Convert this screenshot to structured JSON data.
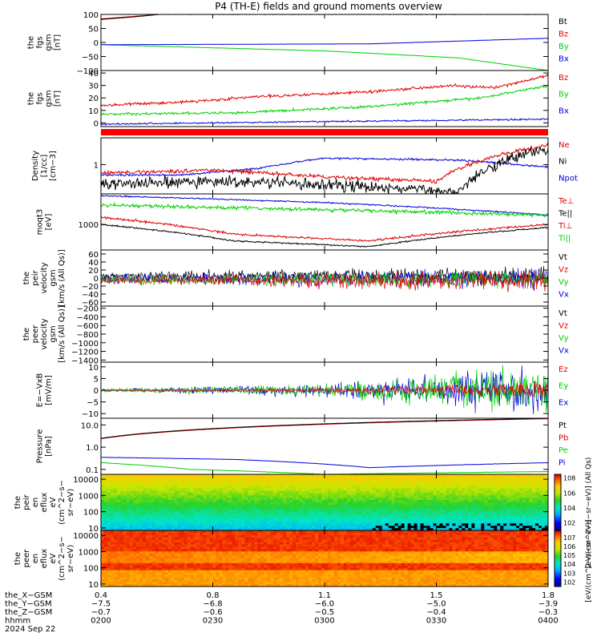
{
  "title": "P4 (TH-E) fields and ground moments overview",
  "colors": {
    "black": "#000000",
    "red": "#e00000",
    "green": "#00d000",
    "blue": "#0000e0",
    "thick_bar": "#ff0000"
  },
  "panels": [
    {
      "key": "p1",
      "ylabel": [
        "the",
        "fgs",
        "gsm",
        "[nT]"
      ],
      "ylim": [
        -100,
        100
      ],
      "yticks": [
        "100",
        "50",
        "0",
        "−50",
        "−100"
      ],
      "ytick_values": [
        100,
        50,
        0,
        -50,
        -100
      ],
      "legend": [
        {
          "text": "Bt",
          "color": "#000000"
        },
        {
          "text": "Bz",
          "color": "#e00000"
        },
        {
          "text": "By",
          "color": "#00d000"
        },
        {
          "text": "Bx",
          "color": "#0000e0"
        }
      ]
    },
    {
      "key": "p2",
      "ylabel": [
        "the",
        "fgs",
        "gsm",
        "[nT]"
      ],
      "ylim": [
        -3,
        42
      ],
      "yticks": [
        "40",
        "30",
        "20",
        "10",
        "0"
      ],
      "ytick_values": [
        40,
        30,
        20,
        10,
        0
      ],
      "legend": [
        {
          "text": "Bz",
          "color": "#e00000"
        },
        {
          "text": "By",
          "color": "#00d000"
        },
        {
          "text": "Bx",
          "color": "#0000e0"
        }
      ]
    },
    {
      "key": "p3",
      "ylabel": [
        "Density",
        "[1/cc]",
        "[cm−3]"
      ],
      "log": true,
      "ylim": [
        0.3,
        3
      ],
      "yticks": [
        "1"
      ],
      "ytick_values": [
        1
      ],
      "legend": [
        {
          "text": "Ne",
          "color": "#e00000"
        },
        {
          "text": "Ni",
          "color": "#000000"
        },
        {
          "text": "Npot",
          "color": "#0000e0"
        }
      ]
    },
    {
      "key": "p4",
      "ylabel": [
        "moqt3",
        "[eV]"
      ],
      "log": true,
      "ylim": [
        400,
        3000
      ],
      "yticks": [
        "1000"
      ],
      "ytick_values": [
        1000
      ],
      "legend": [
        {
          "text": "Te⊥",
          "color": "#e00000"
        },
        {
          "text": "Te||",
          "color": "#000000"
        },
        {
          "text": "Ti⊥",
          "color": "#e00000"
        },
        {
          "text": "Ti||",
          "color": "#00d000"
        }
      ]
    },
    {
      "key": "p5",
      "ylabel": [
        "the",
        "peir",
        "velocity",
        "gsm",
        "[km/s (All Qs)]"
      ],
      "ylim": [
        -70,
        70
      ],
      "yticks": [
        "60",
        "40",
        "20",
        "0",
        "−20",
        "−40",
        "−60"
      ],
      "ytick_values": [
        60,
        40,
        20,
        0,
        -20,
        -40,
        -60
      ],
      "legend": [
        {
          "text": "Vt",
          "color": "#000000"
        },
        {
          "text": "Vz",
          "color": "#e00000"
        },
        {
          "text": "Vy",
          "color": "#00d000"
        },
        {
          "text": "Vx",
          "color": "#0000e0"
        }
      ]
    },
    {
      "key": "p6",
      "ylabel": [
        "the",
        "peer",
        "velocity",
        "gsm",
        "[km/s (All Qs)]"
      ],
      "ylim": [
        -1450,
        -150
      ],
      "yticks": [
        "−200",
        "−400",
        "−600",
        "−800",
        "−1000",
        "−1200",
        "−1400"
      ],
      "ytick_values": [
        -200,
        -400,
        -600,
        -800,
        -1000,
        -1200,
        -1400
      ],
      "legend": [
        {
          "text": "Vt",
          "color": "#000000"
        },
        {
          "text": "Vz",
          "color": "#e00000"
        },
        {
          "text": "Vy",
          "color": "#00d000"
        },
        {
          "text": "Vx",
          "color": "#0000e0"
        }
      ]
    },
    {
      "key": "p7",
      "ylabel": [
        "E=−VxB",
        "[mV/m]"
      ],
      "ylim": [
        -12,
        12
      ],
      "yticks": [
        "10",
        "5",
        "0",
        "−5",
        "−10"
      ],
      "ytick_values": [
        10,
        5,
        0,
        -5,
        -10
      ],
      "legend": [
        {
          "text": "Ez",
          "color": "#e00000"
        },
        {
          "text": "Ey",
          "color": "#00d000"
        },
        {
          "text": "Ex",
          "color": "#0000e0"
        }
      ]
    },
    {
      "key": "p8",
      "ylabel": [
        "Pressure",
        "[nPa]"
      ],
      "log": true,
      "ylim": [
        0.06,
        20
      ],
      "yticks": [
        "10.0",
        "1.0",
        "0.1"
      ],
      "ytick_values": [
        10,
        1,
        0.1
      ],
      "legend": [
        {
          "text": "Pt",
          "color": "#000000"
        },
        {
          "text": "Pb",
          "color": "#e00000"
        },
        {
          "text": "Pe",
          "color": "#00d000"
        },
        {
          "text": "Pi",
          "color": "#0000e0"
        }
      ]
    },
    {
      "key": "p9",
      "ylabel": [
        "the",
        "peir",
        "en",
        "eflux",
        "eV",
        "(cm^2−s−",
        "sr−eV)"
      ],
      "log": true,
      "ylim": [
        7,
        20000
      ],
      "yticks": [
        "10000",
        "1000",
        "100",
        "10"
      ],
      "ytick_values": [
        10000,
        1000,
        100,
        10
      ],
      "cbar": {
        "label": "[eV/(cm^2−s−sr−eV)] (All Qs)",
        "ticks": [
          "10^8",
          "10^6",
          "10^4",
          "10^2"
        ],
        "tick_values": [
          8,
          6,
          4,
          2
        ],
        "range": [
          1,
          8.5
        ]
      }
    },
    {
      "key": "p10",
      "ylabel": [
        "the",
        "peer",
        "en",
        "eflux",
        "eV",
        "(cm^2−s−",
        "sr−eV)"
      ],
      "log": true,
      "ylim": [
        7,
        20000
      ],
      "yticks": [
        "10000",
        "1000",
        "100",
        "10"
      ],
      "ytick_values": [
        10000,
        1000,
        100,
        10
      ],
      "cbar": {
        "label": "[eV/(cm^2−s−sr−eV)]",
        "ticks": [
          "10^7",
          "10^6",
          "10^5",
          "10^4",
          "10^3",
          "10^2"
        ],
        "tick_values": [
          7,
          6,
          5,
          4,
          3,
          2
        ],
        "range": [
          1.5,
          7.8
        ]
      }
    }
  ],
  "xaxis": {
    "rows": [
      {
        "label": "the_X−GSM",
        "values": [
          "0.4",
          "0.8",
          "1.1",
          "1.5",
          "1.8"
        ]
      },
      {
        "label": "the_Y−GSM",
        "values": [
          "−7.5",
          "−6.8",
          "−6.0",
          "−5.0",
          "−3.9"
        ]
      },
      {
        "label": "the_Z−GSM",
        "values": [
          "−0.7",
          "−0.6",
          "−0.5",
          "−0.4",
          "−0.3"
        ]
      },
      {
        "label": "hhmm",
        "values": [
          "0200",
          "0230",
          "0300",
          "0330",
          "0400"
        ]
      }
    ],
    "date": "2024 Sep 22"
  },
  "chart_data": {
    "type": "line",
    "time_range": [
      "02:00",
      "04:00"
    ],
    "time_ticks": [
      "0200",
      "0230",
      "0300",
      "0330",
      "0400"
    ],
    "series_keypoints": {
      "p1": {
        "Bt": [
          [
            0,
            82
          ],
          [
            0.08,
            92
          ],
          [
            0.13,
            100
          ]
        ],
        "Bz": [
          [
            0,
            84
          ],
          [
            0.13,
            100
          ]
        ],
        "By": [
          [
            0,
            -8
          ],
          [
            0.5,
            -30
          ],
          [
            0.8,
            -55
          ],
          [
            1,
            -100
          ]
        ],
        "Bx": [
          [
            0,
            -8
          ],
          [
            0.6,
            -5
          ],
          [
            1,
            15
          ]
        ]
      },
      "p2": {
        "Bz": [
          [
            0,
            14
          ],
          [
            0.2,
            17
          ],
          [
            0.35,
            21
          ],
          [
            0.6,
            25
          ],
          [
            0.78,
            30
          ],
          [
            0.88,
            28
          ],
          [
            1,
            38
          ]
        ],
        "By": [
          [
            0,
            7
          ],
          [
            0.3,
            8
          ],
          [
            0.6,
            13
          ],
          [
            0.85,
            20
          ],
          [
            1,
            30
          ]
        ],
        "Bx": [
          [
            0,
            -1
          ],
          [
            0.5,
            1
          ],
          [
            1,
            3
          ]
        ]
      },
      "p3": {
        "Ne": [
          [
            0,
            0.7
          ],
          [
            0.25,
            0.8
          ],
          [
            0.5,
            0.6
          ],
          [
            0.75,
            0.5
          ],
          [
            1,
            2.2
          ]
        ],
        "Ni": [
          [
            0,
            0.45
          ],
          [
            0.3,
            0.5
          ],
          [
            0.6,
            0.4
          ],
          [
            0.8,
            0.32
          ],
          [
            1,
            2.0
          ]
        ],
        "Npot": [
          [
            0.18,
            0.65
          ],
          [
            0.35,
            0.85
          ],
          [
            0.5,
            1.3
          ],
          [
            0.8,
            1.2
          ],
          [
            1,
            0.9
          ]
        ]
      },
      "p4": {
        "Te⊥": [
          [
            0,
            2900
          ],
          [
            0.5,
            2300
          ],
          [
            1,
            1500
          ]
        ],
        "Te||": [
          [
            0,
            2800
          ],
          [
            0.5,
            2200
          ],
          [
            1,
            1400
          ]
        ],
        "Ti⊥": [
          [
            0,
            1300
          ],
          [
            0.3,
            700
          ],
          [
            0.6,
            550
          ],
          [
            1,
            1000
          ]
        ],
        "Ti||": [
          [
            0,
            2000
          ],
          [
            0.5,
            1700
          ],
          [
            1,
            1400
          ]
        ],
        "black": [
          [
            0,
            1000
          ],
          [
            0.3,
            550
          ],
          [
            0.6,
            450
          ],
          [
            1,
            900
          ]
        ]
      },
      "p7": {
        "noise_growth": [
          [
            0,
            0.5
          ],
          [
            0.5,
            2
          ],
          [
            1,
            8
          ]
        ]
      },
      "p8": {
        "Pt": [
          [
            0,
            2.5
          ],
          [
            1,
            20
          ]
        ],
        "Pb": [
          [
            0,
            2.4
          ],
          [
            1,
            19
          ]
        ],
        "Pe": [
          [
            0,
            0.2
          ],
          [
            0.2,
            0.1
          ],
          [
            0.5,
            0.06
          ],
          [
            1,
            0.08
          ]
        ],
        "Pi": [
          [
            0,
            0.35
          ],
          [
            0.3,
            0.28
          ],
          [
            0.6,
            0.12
          ],
          [
            1,
            0.2
          ]
        ]
      }
    }
  }
}
